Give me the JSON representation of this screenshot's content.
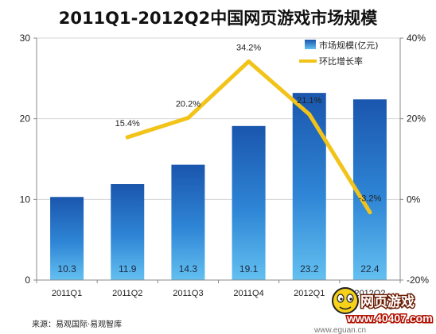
{
  "chart_data": {
    "type": "bar",
    "title": "2011Q1-2012Q2中国网页游戏市场规模",
    "categories": [
      "2011Q1",
      "2011Q2",
      "2011Q3",
      "2011Q4",
      "2012Q1",
      "2012Q2"
    ],
    "series": [
      {
        "name": "市场规模(亿元)",
        "type": "bar",
        "axis": "left",
        "values": [
          10.3,
          11.9,
          14.3,
          19.1,
          23.2,
          22.4
        ],
        "labels": [
          "10.3",
          "11.9",
          "14.3",
          "19.1",
          "23.2",
          "22.4"
        ]
      },
      {
        "name": "环比增长率",
        "type": "line",
        "axis": "right",
        "values": [
          null,
          15.4,
          20.2,
          34.2,
          21.1,
          -3.2
        ],
        "labels": [
          "",
          "15.4%",
          "20.2%",
          "34.2%",
          "21.1%",
          "-3.2%"
        ]
      }
    ],
    "y_left": {
      "ylim": [
        0,
        30
      ],
      "ticks": [
        "0",
        "10",
        "20",
        "30"
      ]
    },
    "y_right": {
      "ylim": [
        -20,
        40
      ],
      "ticks": [
        "-20%",
        "0%",
        "20%",
        "40%"
      ]
    },
    "legend_position": "top-right",
    "colors": {
      "bar_top": "#1e5fb8",
      "bar_bottom": "#5db8ee",
      "line": "#f2c318"
    }
  },
  "source": "来源：易观国际·易观智库",
  "watermark": {
    "line1": "网页游戏",
    "line2": "www.40407.com",
    "line3": "www.eguan.cn"
  }
}
